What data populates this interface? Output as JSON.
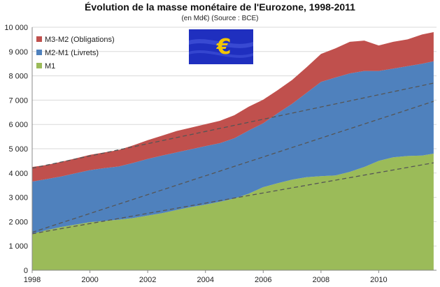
{
  "chart_data": {
    "type": "area",
    "title": "Évolution de la masse monétaire de l'Eurozone, 1998-2011",
    "subtitle": "(en Md€) (Source : BCE)",
    "x": [
      1998.0,
      1998.5,
      1999.0,
      1999.5,
      2000.0,
      2000.5,
      2001.0,
      2001.5,
      2002.0,
      2002.5,
      2003.0,
      2003.5,
      2004.0,
      2004.5,
      2005.0,
      2005.5,
      2006.0,
      2006.5,
      2007.0,
      2007.5,
      2008.0,
      2008.5,
      2009.0,
      2009.5,
      2010.0,
      2010.5,
      2011.0,
      2011.5,
      2011.9
    ],
    "xticks": [
      1998,
      2000,
      2002,
      2004,
      2006,
      2008,
      2010
    ],
    "xlim": [
      1998,
      2012
    ],
    "ylim": [
      0,
      10000
    ],
    "yticks": [
      0,
      1000,
      2000,
      3000,
      4000,
      5000,
      6000,
      7000,
      8000,
      9000,
      10000
    ],
    "ytick_labels": [
      "0",
      "1 000",
      "2 000",
      "3 000",
      "4 000",
      "5 000",
      "6 000",
      "7 000",
      "8 000",
      "9 000",
      "10 000"
    ],
    "stacked": true,
    "grid": "horizontal",
    "legend_position": "top-left",
    "series": [
      {
        "name": "M1",
        "color": "#9bbb59",
        "values": [
          1500,
          1650,
          1780,
          1880,
          1980,
          2030,
          2080,
          2150,
          2250,
          2350,
          2480,
          2600,
          2700,
          2820,
          2950,
          3150,
          3420,
          3580,
          3730,
          3830,
          3870,
          3900,
          4050,
          4250,
          4500,
          4650,
          4700,
          4720,
          4800
        ]
      },
      {
        "name": "M2-M1 (Livrets)",
        "color": "#4f81bd",
        "values": [
          2150,
          2100,
          2080,
          2110,
          2140,
          2170,
          2190,
          2270,
          2330,
          2370,
          2370,
          2380,
          2410,
          2410,
          2480,
          2600,
          2630,
          2880,
          3120,
          3470,
          3880,
          4030,
          4050,
          3950,
          3700,
          3650,
          3700,
          3780,
          3800
        ]
      },
      {
        "name": "M3-M2 (Obligations)",
        "color": "#c0504d",
        "values": [
          600,
          580,
          600,
          610,
          630,
          650,
          680,
          720,
          770,
          820,
          880,
          890,
          900,
          920,
          950,
          980,
          970,
          950,
          980,
          1050,
          1150,
          1200,
          1300,
          1250,
          1050,
          1100,
          1100,
          1200,
          1200
        ]
      }
    ],
    "trendlines": [
      {
        "from": [
          1998,
          1500
        ],
        "to": [
          2011.9,
          4420
        ]
      },
      {
        "from": [
          1998,
          1560
        ],
        "to": [
          2011.9,
          6950
        ]
      },
      {
        "from": [
          1998,
          4200
        ],
        "to": [
          2011.9,
          7700
        ]
      }
    ],
    "trendline_style": "dashed"
  },
  "logo": {
    "name": "euro-logo",
    "symbol": "€",
    "flag_color": "#1f2fbf",
    "symbol_color": "#f2c500"
  }
}
